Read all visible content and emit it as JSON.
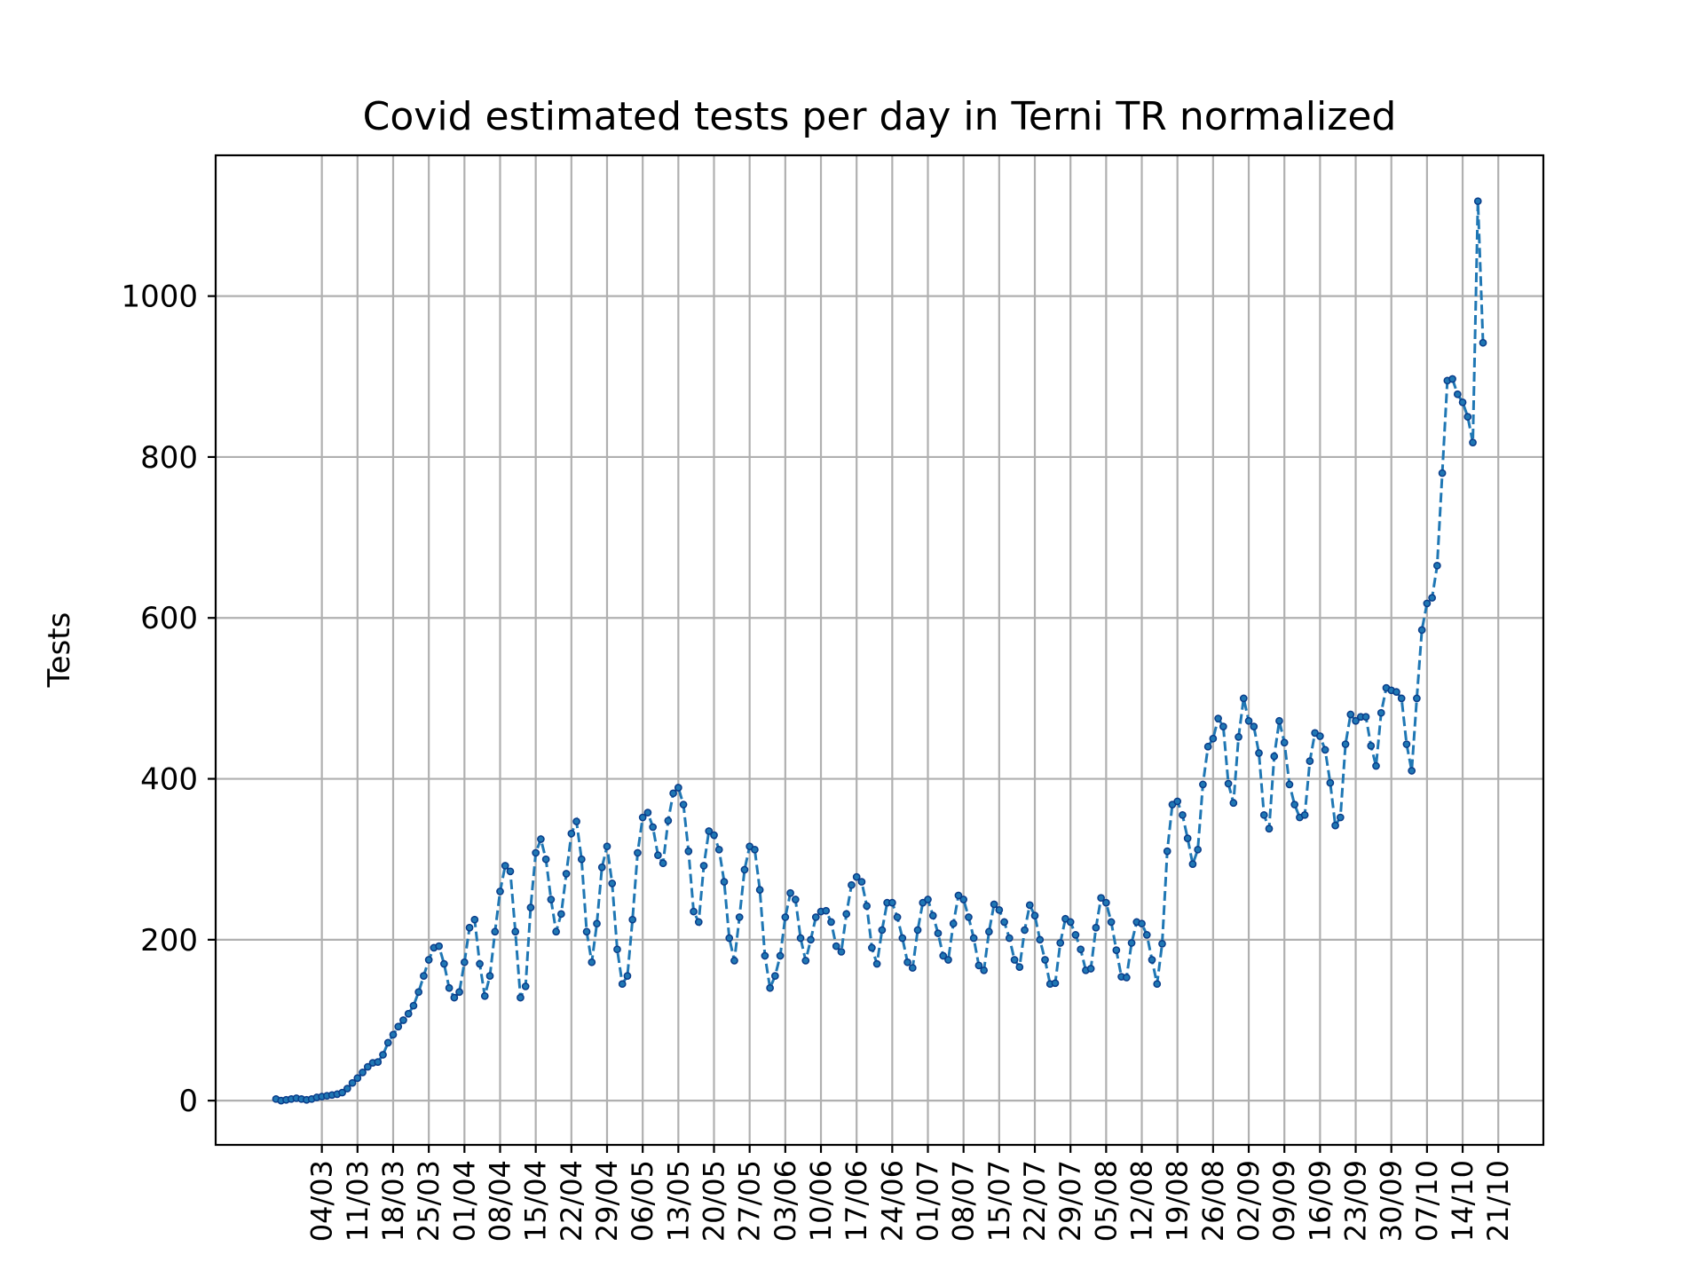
{
  "chart_data": {
    "type": "line",
    "title": "Covid estimated tests per day in Terni TR normalized",
    "xlabel": "",
    "ylabel": "Tests",
    "ylim": [
      -55,
      1175
    ],
    "yticks": [
      0,
      200,
      400,
      600,
      800,
      1000
    ],
    "xticks": [
      "04/03",
      "11/03",
      "18/03",
      "25/03",
      "01/04",
      "08/04",
      "15/04",
      "22/04",
      "29/04",
      "06/05",
      "13/05",
      "20/05",
      "27/05",
      "03/06",
      "10/06",
      "17/06",
      "24/06",
      "01/07",
      "08/07",
      "15/07",
      "22/07",
      "29/07",
      "05/08",
      "12/08",
      "19/08",
      "26/08",
      "02/09",
      "09/09",
      "16/09",
      "23/09",
      "30/09",
      "07/10",
      "14/10",
      "21/10"
    ],
    "x_start": "2020-02-24",
    "grid": true,
    "legend": "none",
    "line_style": "dashed",
    "color": "#1f77b4",
    "series": [
      {
        "values": [
          2,
          0,
          1,
          2,
          3,
          2,
          1,
          2,
          4,
          5,
          6,
          7,
          8,
          10,
          15,
          22,
          28,
          35,
          42,
          47,
          48,
          57,
          72,
          82,
          92,
          100,
          108,
          118,
          135,
          155,
          175,
          190,
          192,
          170,
          140,
          128,
          135,
          172,
          215,
          225,
          170,
          130,
          155,
          210,
          260,
          292,
          285,
          210,
          128,
          142,
          240,
          308,
          325,
          300,
          250,
          210,
          232,
          282,
          332,
          347,
          300,
          210,
          172,
          220,
          290,
          316,
          270,
          188,
          145,
          155,
          225,
          308,
          352,
          358,
          340,
          305,
          295,
          348,
          382,
          389,
          368,
          310,
          235,
          222,
          292,
          335,
          330,
          312,
          272,
          202,
          174,
          228,
          287,
          316,
          312,
          262,
          180,
          140,
          155,
          180,
          228,
          258,
          250,
          202,
          174,
          200,
          228,
          235,
          236,
          222,
          192,
          185,
          232,
          268,
          278,
          272,
          242,
          190,
          170,
          212,
          246,
          246,
          228,
          202,
          172,
          165,
          212,
          246,
          250,
          230,
          208,
          180,
          175,
          220,
          255,
          250,
          228,
          202,
          168,
          162,
          210,
          244,
          237,
          222,
          202,
          175,
          166,
          212,
          243,
          230,
          200,
          175,
          145,
          146,
          196,
          226,
          222,
          206,
          188,
          162,
          164,
          215,
          252,
          246,
          222,
          187,
          154,
          153,
          196,
          222,
          220,
          206,
          175,
          145,
          195,
          310,
          368,
          372,
          355,
          326,
          294,
          312,
          393,
          440,
          450,
          475,
          465,
          394,
          370,
          452,
          500,
          472,
          465,
          432,
          355,
          338,
          428,
          472,
          445,
          393,
          368,
          352,
          355,
          422,
          457,
          453,
          436,
          395,
          342,
          352,
          443,
          480,
          472,
          477,
          477,
          441,
          416,
          482,
          513,
          510,
          508,
          500,
          443,
          410,
          500,
          585,
          618,
          625,
          665,
          780,
          895,
          897,
          878,
          868,
          850,
          818,
          1118,
          942
        ]
      }
    ]
  }
}
